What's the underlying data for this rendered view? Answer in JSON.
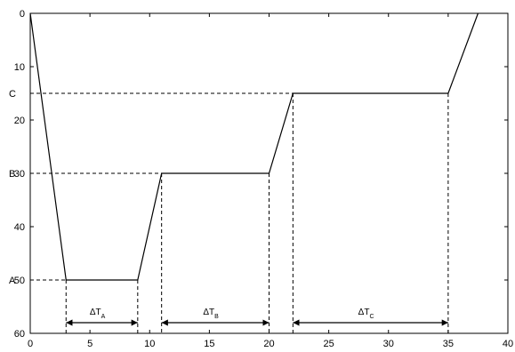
{
  "chart_data": {
    "type": "line",
    "title": "",
    "xlabel": "",
    "ylabel": "",
    "xlim": [
      0,
      40
    ],
    "ylim": [
      60,
      0
    ],
    "y_inverted": true,
    "xticks": [
      0,
      5,
      10,
      15,
      20,
      25,
      30,
      35,
      40
    ],
    "yticks": [
      0,
      10,
      20,
      30,
      40,
      50,
      60
    ],
    "grid": false,
    "series": [
      {
        "x": [
          0,
          3,
          9,
          11,
          20,
          22,
          35,
          37.5
        ],
        "y": [
          0,
          50,
          50,
          30,
          30,
          15,
          15,
          0
        ]
      }
    ],
    "levels": [
      {
        "label": "A",
        "y": 50
      },
      {
        "label": "B",
        "y": 30
      },
      {
        "label": "C",
        "y": 15
      }
    ],
    "intervals": [
      {
        "label": "ΔT",
        "sub": "A",
        "from": 3,
        "to": 9
      },
      {
        "label": "ΔT",
        "sub": "B",
        "from": 11,
        "to": 20
      },
      {
        "label": "ΔT",
        "sub": "C",
        "from": 22,
        "to": 35
      }
    ],
    "arrow_y": 58,
    "colors": {
      "line": "#000000",
      "frame": "#000000",
      "guide": "#000000"
    }
  }
}
